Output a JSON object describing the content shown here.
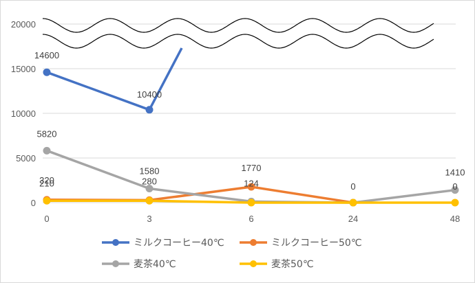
{
  "chart_data": {
    "type": "line",
    "categories": [
      "0",
      "3",
      "6",
      "24",
      "48"
    ],
    "ylim": [
      0,
      20000
    ],
    "yticks": [
      "0",
      "5000",
      "10000",
      "15000",
      "20000"
    ],
    "grid": true,
    "legend_position": "bottom",
    "axis_break": true,
    "series": [
      {
        "name": "ミルクコーヒー40℃",
        "color": "#4472c4",
        "values": [
          14600,
          10400,
          null,
          null,
          null
        ],
        "labels": [
          "14600",
          "10400",
          "",
          "",
          ""
        ]
      },
      {
        "name": "ミルクコーヒー50℃",
        "color": "#ed7d31",
        "values": [
          320,
          280,
          1770,
          0,
          null
        ],
        "labels": [
          "320",
          "280",
          "1770",
          "0",
          ""
        ]
      },
      {
        "name": "麦茶40℃",
        "color": "#a5a5a5",
        "values": [
          5820,
          1580,
          124,
          0,
          1410
        ],
        "labels": [
          "5820",
          "1580",
          "124",
          "",
          "1410"
        ]
      },
      {
        "name": "麦茶50℃",
        "color": "#ffc000",
        "values": [
          210,
          210,
          0,
          0,
          0
        ],
        "labels": [
          "210",
          "",
          "",
          "",
          "0"
        ]
      }
    ]
  }
}
